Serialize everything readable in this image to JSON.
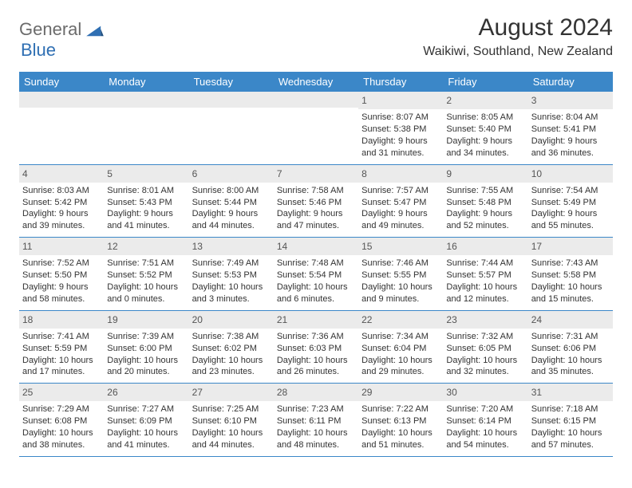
{
  "logo": {
    "general": "General",
    "blue": "Blue"
  },
  "title": "August 2024",
  "location": "Waikiwi, Southland, New Zealand",
  "weekdays": [
    "Sunday",
    "Monday",
    "Tuesday",
    "Wednesday",
    "Thursday",
    "Friday",
    "Saturday"
  ],
  "colors": {
    "header_bg": "#3b87c8",
    "header_text": "#ffffff",
    "daynum_bg": "#ebebeb",
    "row_border": "#3b87c8",
    "logo_gray": "#6b6b6b",
    "logo_blue": "#2f6fb3"
  },
  "weeks": [
    [
      {
        "n": "",
        "sunrise": "",
        "sunset": "",
        "daylight": ""
      },
      {
        "n": "",
        "sunrise": "",
        "sunset": "",
        "daylight": ""
      },
      {
        "n": "",
        "sunrise": "",
        "sunset": "",
        "daylight": ""
      },
      {
        "n": "",
        "sunrise": "",
        "sunset": "",
        "daylight": ""
      },
      {
        "n": "1",
        "sunrise": "Sunrise: 8:07 AM",
        "sunset": "Sunset: 5:38 PM",
        "daylight": "Daylight: 9 hours and 31 minutes."
      },
      {
        "n": "2",
        "sunrise": "Sunrise: 8:05 AM",
        "sunset": "Sunset: 5:40 PM",
        "daylight": "Daylight: 9 hours and 34 minutes."
      },
      {
        "n": "3",
        "sunrise": "Sunrise: 8:04 AM",
        "sunset": "Sunset: 5:41 PM",
        "daylight": "Daylight: 9 hours and 36 minutes."
      }
    ],
    [
      {
        "n": "4",
        "sunrise": "Sunrise: 8:03 AM",
        "sunset": "Sunset: 5:42 PM",
        "daylight": "Daylight: 9 hours and 39 minutes."
      },
      {
        "n": "5",
        "sunrise": "Sunrise: 8:01 AM",
        "sunset": "Sunset: 5:43 PM",
        "daylight": "Daylight: 9 hours and 41 minutes."
      },
      {
        "n": "6",
        "sunrise": "Sunrise: 8:00 AM",
        "sunset": "Sunset: 5:44 PM",
        "daylight": "Daylight: 9 hours and 44 minutes."
      },
      {
        "n": "7",
        "sunrise": "Sunrise: 7:58 AM",
        "sunset": "Sunset: 5:46 PM",
        "daylight": "Daylight: 9 hours and 47 minutes."
      },
      {
        "n": "8",
        "sunrise": "Sunrise: 7:57 AM",
        "sunset": "Sunset: 5:47 PM",
        "daylight": "Daylight: 9 hours and 49 minutes."
      },
      {
        "n": "9",
        "sunrise": "Sunrise: 7:55 AM",
        "sunset": "Sunset: 5:48 PM",
        "daylight": "Daylight: 9 hours and 52 minutes."
      },
      {
        "n": "10",
        "sunrise": "Sunrise: 7:54 AM",
        "sunset": "Sunset: 5:49 PM",
        "daylight": "Daylight: 9 hours and 55 minutes."
      }
    ],
    [
      {
        "n": "11",
        "sunrise": "Sunrise: 7:52 AM",
        "sunset": "Sunset: 5:50 PM",
        "daylight": "Daylight: 9 hours and 58 minutes."
      },
      {
        "n": "12",
        "sunrise": "Sunrise: 7:51 AM",
        "sunset": "Sunset: 5:52 PM",
        "daylight": "Daylight: 10 hours and 0 minutes."
      },
      {
        "n": "13",
        "sunrise": "Sunrise: 7:49 AM",
        "sunset": "Sunset: 5:53 PM",
        "daylight": "Daylight: 10 hours and 3 minutes."
      },
      {
        "n": "14",
        "sunrise": "Sunrise: 7:48 AM",
        "sunset": "Sunset: 5:54 PM",
        "daylight": "Daylight: 10 hours and 6 minutes."
      },
      {
        "n": "15",
        "sunrise": "Sunrise: 7:46 AM",
        "sunset": "Sunset: 5:55 PM",
        "daylight": "Daylight: 10 hours and 9 minutes."
      },
      {
        "n": "16",
        "sunrise": "Sunrise: 7:44 AM",
        "sunset": "Sunset: 5:57 PM",
        "daylight": "Daylight: 10 hours and 12 minutes."
      },
      {
        "n": "17",
        "sunrise": "Sunrise: 7:43 AM",
        "sunset": "Sunset: 5:58 PM",
        "daylight": "Daylight: 10 hours and 15 minutes."
      }
    ],
    [
      {
        "n": "18",
        "sunrise": "Sunrise: 7:41 AM",
        "sunset": "Sunset: 5:59 PM",
        "daylight": "Daylight: 10 hours and 17 minutes."
      },
      {
        "n": "19",
        "sunrise": "Sunrise: 7:39 AM",
        "sunset": "Sunset: 6:00 PM",
        "daylight": "Daylight: 10 hours and 20 minutes."
      },
      {
        "n": "20",
        "sunrise": "Sunrise: 7:38 AM",
        "sunset": "Sunset: 6:02 PM",
        "daylight": "Daylight: 10 hours and 23 minutes."
      },
      {
        "n": "21",
        "sunrise": "Sunrise: 7:36 AM",
        "sunset": "Sunset: 6:03 PM",
        "daylight": "Daylight: 10 hours and 26 minutes."
      },
      {
        "n": "22",
        "sunrise": "Sunrise: 7:34 AM",
        "sunset": "Sunset: 6:04 PM",
        "daylight": "Daylight: 10 hours and 29 minutes."
      },
      {
        "n": "23",
        "sunrise": "Sunrise: 7:32 AM",
        "sunset": "Sunset: 6:05 PM",
        "daylight": "Daylight: 10 hours and 32 minutes."
      },
      {
        "n": "24",
        "sunrise": "Sunrise: 7:31 AM",
        "sunset": "Sunset: 6:06 PM",
        "daylight": "Daylight: 10 hours and 35 minutes."
      }
    ],
    [
      {
        "n": "25",
        "sunrise": "Sunrise: 7:29 AM",
        "sunset": "Sunset: 6:08 PM",
        "daylight": "Daylight: 10 hours and 38 minutes."
      },
      {
        "n": "26",
        "sunrise": "Sunrise: 7:27 AM",
        "sunset": "Sunset: 6:09 PM",
        "daylight": "Daylight: 10 hours and 41 minutes."
      },
      {
        "n": "27",
        "sunrise": "Sunrise: 7:25 AM",
        "sunset": "Sunset: 6:10 PM",
        "daylight": "Daylight: 10 hours and 44 minutes."
      },
      {
        "n": "28",
        "sunrise": "Sunrise: 7:23 AM",
        "sunset": "Sunset: 6:11 PM",
        "daylight": "Daylight: 10 hours and 48 minutes."
      },
      {
        "n": "29",
        "sunrise": "Sunrise: 7:22 AM",
        "sunset": "Sunset: 6:13 PM",
        "daylight": "Daylight: 10 hours and 51 minutes."
      },
      {
        "n": "30",
        "sunrise": "Sunrise: 7:20 AM",
        "sunset": "Sunset: 6:14 PM",
        "daylight": "Daylight: 10 hours and 54 minutes."
      },
      {
        "n": "31",
        "sunrise": "Sunrise: 7:18 AM",
        "sunset": "Sunset: 6:15 PM",
        "daylight": "Daylight: 10 hours and 57 minutes."
      }
    ]
  ]
}
